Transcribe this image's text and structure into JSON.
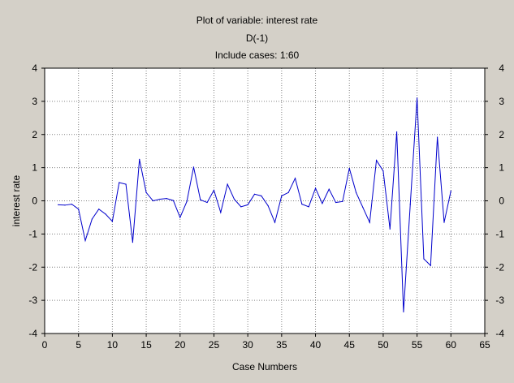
{
  "chart_data": {
    "type": "line",
    "title": "Plot of variable: interest rate",
    "subtitle": "D(-1)",
    "subtitle2": "Include cases: 1:60",
    "xlabel": "Case Numbers",
    "ylabel": "interest rate",
    "xlim": [
      0,
      65
    ],
    "ylim": [
      -4,
      4
    ],
    "x_ticks": [
      0,
      5,
      10,
      15,
      20,
      25,
      30,
      35,
      40,
      45,
      50,
      55,
      60,
      65
    ],
    "y_ticks": [
      -4,
      -3,
      -2,
      -1,
      0,
      1,
      2,
      3,
      4
    ],
    "grid": true,
    "colors": {
      "line": "#0000cc",
      "grid": "#808080",
      "frame": "#000000",
      "background": "#d4d0c8",
      "plot_background": "#ffffff"
    },
    "series": [
      {
        "x": [
          2,
          3,
          4,
          5,
          6,
          7,
          8,
          9,
          10,
          11,
          12,
          13,
          14,
          15,
          16,
          17,
          18,
          19,
          20,
          21,
          22,
          23,
          24,
          25,
          26,
          27,
          28,
          29,
          30,
          31,
          32,
          33,
          34,
          35,
          36,
          37,
          38,
          39,
          40,
          41,
          42,
          43,
          44,
          45,
          46,
          47,
          48,
          49,
          50,
          51,
          52,
          53,
          54,
          55,
          56,
          57,
          58,
          59,
          60
        ],
        "values": [
          -0.12,
          -0.13,
          -0.1,
          -0.25,
          -1.2,
          -0.55,
          -0.25,
          -0.4,
          -0.62,
          0.55,
          0.5,
          -1.25,
          1.25,
          0.25,
          0,
          0.05,
          0.07,
          0.01,
          -0.5,
          -0.02,
          1.02,
          0.03,
          -0.05,
          0.32,
          -0.35,
          0.5,
          0.05,
          -0.18,
          -0.12,
          0.2,
          0.15,
          -0.15,
          -0.65,
          0.15,
          0.25,
          0.68,
          -0.1,
          -0.18,
          0.38,
          -0.08,
          0.35,
          -0.05,
          -0.02,
          0.98,
          0.25,
          -0.2,
          -0.65,
          1.22,
          0.9,
          -0.85,
          2.08,
          -3.35,
          -0.1,
          3.1,
          -1.75,
          -1.95,
          1.92,
          -0.65,
          0.3
        ]
      }
    ]
  }
}
